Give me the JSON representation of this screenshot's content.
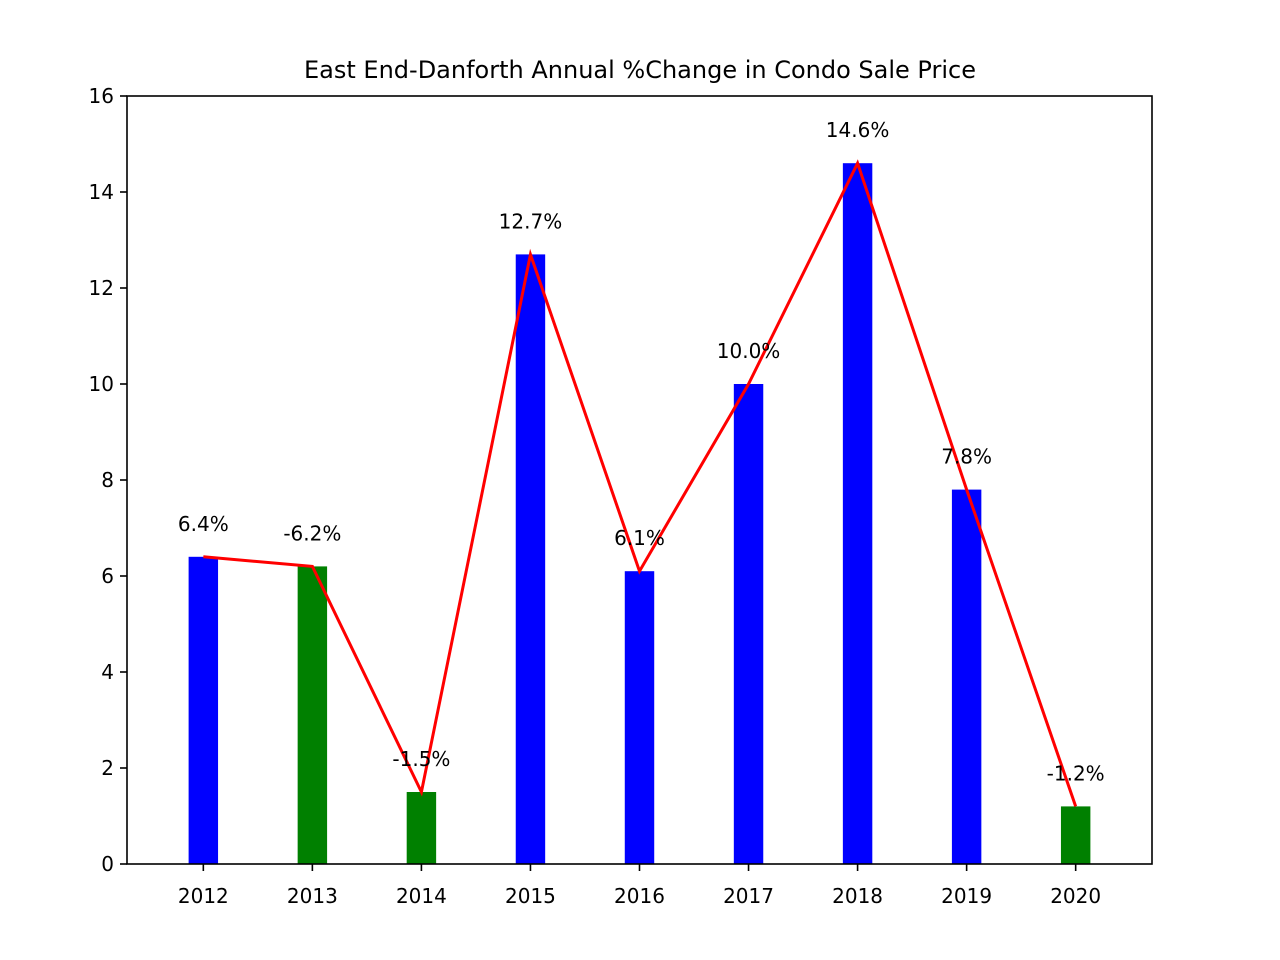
{
  "chart_data": {
    "type": "bar",
    "title": "East End-Danforth Annual %Change in Condo Sale Price",
    "xlabel": "",
    "ylabel": "",
    "categories": [
      "2012",
      "2013",
      "2014",
      "2015",
      "2016",
      "2017",
      "2018",
      "2019",
      "2020"
    ],
    "values": [
      6.4,
      6.2,
      1.5,
      12.7,
      6.1,
      10.0,
      14.6,
      7.8,
      1.2
    ],
    "data_labels": [
      "6.4%",
      "-6.2%",
      "-1.5%",
      "12.7%",
      "6.1%",
      "10.0%",
      "14.6%",
      "7.8%",
      "-1.2%"
    ],
    "bar_colors": [
      "#0000ff",
      "#008000",
      "#008000",
      "#0000ff",
      "#0000ff",
      "#0000ff",
      "#0000ff",
      "#0000ff",
      "#008000"
    ],
    "line_color": "#ff0000",
    "ylim": [
      0,
      16
    ],
    "yticks": [
      "0",
      "2",
      "4",
      "6",
      "8",
      "10",
      "12",
      "14",
      "16"
    ],
    "grid": false,
    "legend": "none",
    "overlay": "line through bar tops"
  }
}
